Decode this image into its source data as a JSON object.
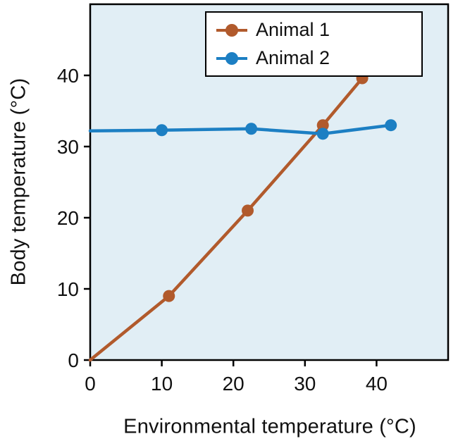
{
  "chart_data": {
    "type": "line",
    "title": "",
    "xlabel": "Environmental temperature (°C)",
    "ylabel": "Body temperature (°C)",
    "xlim": [
      0,
      50
    ],
    "ylim": [
      0,
      50
    ],
    "xticks": [
      0,
      10,
      20,
      30,
      40
    ],
    "yticks": [
      0,
      10,
      20,
      30,
      40
    ],
    "grid": false,
    "plot_bg": "#e1eef5",
    "axis_color": "#000000",
    "legend_position": "top-center-inside",
    "series": [
      {
        "name": "Animal 1",
        "color": "#b15a2c",
        "x": [
          0,
          11,
          22,
          32.5,
          38
        ],
        "y": [
          0,
          9,
          21,
          33,
          39.6
        ],
        "markers": [
          false,
          true,
          true,
          true,
          true
        ]
      },
      {
        "name": "Animal 2",
        "color": "#1c7fc3",
        "x": [
          0,
          10,
          22.5,
          32.5,
          42
        ],
        "y": [
          32.2,
          32.3,
          32.5,
          31.8,
          33
        ],
        "markers": [
          false,
          true,
          true,
          true,
          true
        ]
      }
    ]
  }
}
